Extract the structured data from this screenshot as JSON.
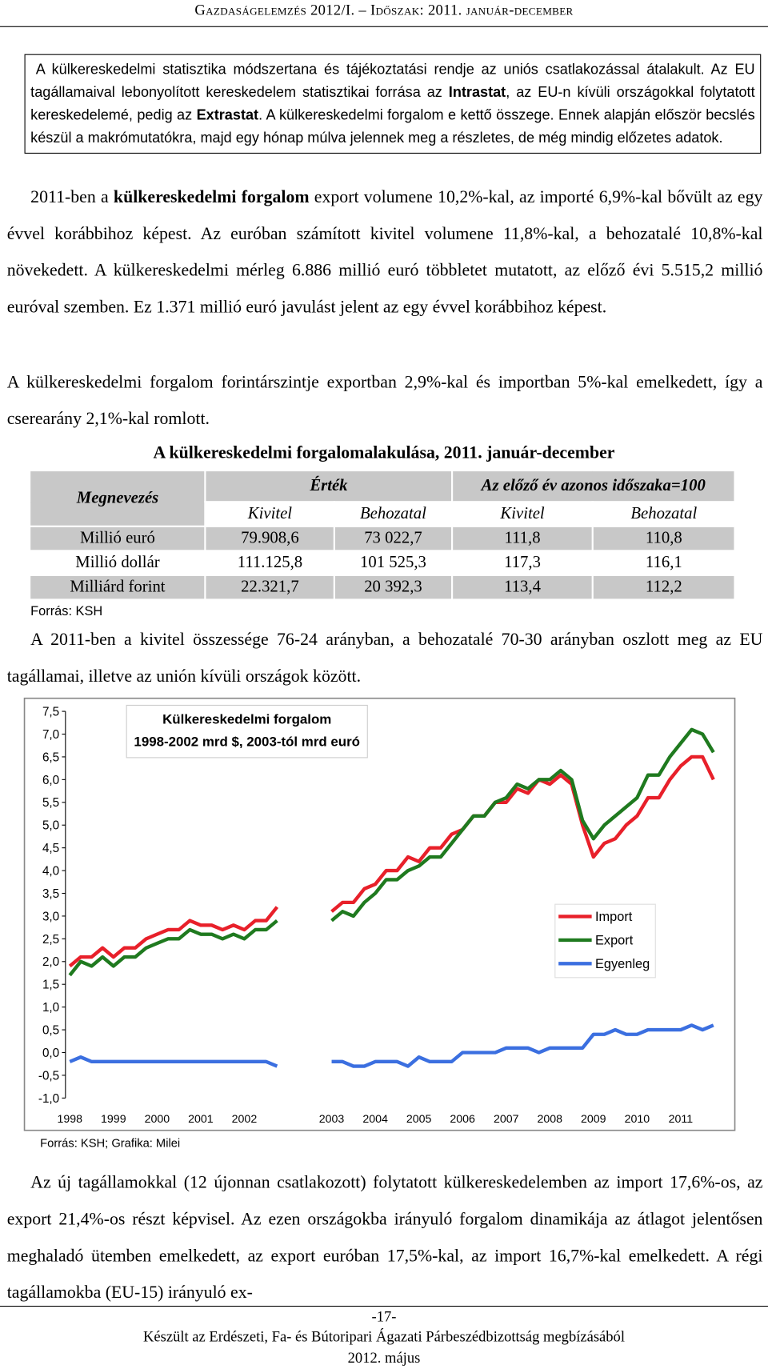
{
  "header": {
    "title": "Gazdaságelemzés 2012/I. – Időszak: 2011. január-december"
  },
  "box": {
    "parts": [
      "A külkereskedelmi statisztika módszertana és tájékoztatási rendje az uniós csatlakozással átalakult. Az EU tagállamaival lebonyolított kereskedelem statisztikai forrása az ",
      "Intrastat",
      ", az EU-n kívüli országokkal folytatott kereskedelemé, pedig az ",
      "Extrastat",
      ". A külkereskedelmi forgalom e kettő összege. Ennek alapján először becslés készül a makrómutatókra, majd egy hónap múlva jelennek meg a részletes, de még mindig előzetes adatok."
    ]
  },
  "paragraphs": [
    {
      "parts": [
        "2011-ben a ",
        "külkereskedelmi forgalom",
        " export volumene 10,2%-kal, az importé 6,9%-kal bővült az egy évvel korábbihoz képest. Az euróban számított kivitel volumene 11,8%-kal, a behozatalé 10,8%-kal növekedett. A külkereskedelmi mérleg 6.886 millió euró többletet mutatott, az előző évi 5.515,2 millió euróval szemben. Ez 1.371 millió euró javulást jelent az egy évvel korábbihoz képest."
      ]
    },
    {
      "parts": [
        "A külkereskedelmi forgalom forintárszintje exportban 2,9%-kal és importban 5%-kal emelkedett, így a cserearány 2,1%-kal romlott."
      ]
    },
    {
      "parts": [
        "A 2011-ben a kivitel összessége 76-24 arányban, a behozatalé 70-30 arányban oszlott meg az EU tagállamai, illetve az unión kívüli országok között."
      ]
    },
    {
      "parts": [
        "Az új tagállamokkal (12 újonnan csatlakozott) folytatott külkereskedelemben az import 17,6%-os, az export 21,4%-os részt képvisel. Az ezen országokba irányuló forgalom dinamikája az átlagot jelentősen meghaladó ütemben emelkedett, az export euróban 17,5%-kal, az import 16,7%-kal emelkedett. A régi tagállamokba (EU-15) irányuló ex-"
      ]
    }
  ],
  "table": {
    "title": "A külkereskedelmi forgalomalakulása, 2011. január-december",
    "header": [
      "Megnevezés",
      "Érték",
      "Az előző év azonos időszaka=100"
    ],
    "subheader": [
      "Kivitel",
      "Behozatal",
      "Kivitel",
      "Behozatal"
    ],
    "rows": [
      [
        "Millió euró",
        "79.908,6",
        "73 022,7",
        "111,8",
        "110,8"
      ],
      [
        "Millió dollár",
        "111.125,8",
        "101 525,3",
        "117,3",
        "116,1"
      ],
      [
        "Milliárd forint",
        "22.321,7",
        "20 392,3",
        "113,4",
        "112,2"
      ]
    ],
    "source": "Forrás: KSH"
  },
  "chart_data": {
    "type": "line",
    "title": [
      "Külkereskedelmi forgalom",
      "1998-2002 mrd $, 2003-tól mrd euró"
    ],
    "source": "Forrás: KSH; Grafika: Milei",
    "legend": "right",
    "categories": [
      "1998",
      null,
      null,
      null,
      "1999",
      null,
      null,
      null,
      "2000",
      null,
      null,
      null,
      "2001",
      null,
      null,
      null,
      "2002",
      null,
      null,
      null,
      null,
      null,
      null,
      null,
      "2003",
      null,
      null,
      null,
      "2004",
      null,
      null,
      null,
      "2005",
      null,
      null,
      null,
      "2006",
      null,
      null,
      null,
      "2007",
      null,
      null,
      null,
      "2008",
      null,
      null,
      null,
      "2009",
      null,
      null,
      null,
      "2010",
      null,
      null,
      null,
      "2011",
      null,
      null,
      null
    ],
    "ylim": [
      -1.0,
      7.5
    ],
    "yticks": [
      {
        "value": -1.0,
        "label": "-1,0"
      },
      {
        "value": -0.5,
        "label": "-0,5"
      },
      {
        "value": 0.0,
        "label": "0,0"
      },
      {
        "value": 0.5,
        "label": "0,5"
      },
      {
        "value": 1.0,
        "label": "1,0"
      },
      {
        "value": 1.5,
        "label": "1,5"
      },
      {
        "value": 2.0,
        "label": "2,0"
      },
      {
        "value": 2.5,
        "label": "2,5"
      },
      {
        "value": 3.0,
        "label": "3,0"
      },
      {
        "value": 3.5,
        "label": "3,5"
      },
      {
        "value": 4.0,
        "label": "4,0"
      },
      {
        "value": 4.5,
        "label": "4,5"
      },
      {
        "value": 5.0,
        "label": "5,0"
      },
      {
        "value": 5.5,
        "label": "5,5"
      },
      {
        "value": 6.0,
        "label": "6,0"
      },
      {
        "value": 6.5,
        "label": "6,5"
      },
      {
        "value": 7.0,
        "label": "7,0"
      },
      {
        "value": 7.5,
        "label": "7,5"
      }
    ],
    "series": [
      {
        "name": "Import",
        "color": "#e8202a",
        "values": [
          1.9,
          2.1,
          2.1,
          2.3,
          2.1,
          2.3,
          2.3,
          2.5,
          2.6,
          2.7,
          2.7,
          2.9,
          2.8,
          2.8,
          2.7,
          2.8,
          2.7,
          2.9,
          2.9,
          3.2,
          null,
          null,
          null,
          null,
          3.1,
          3.3,
          3.3,
          3.6,
          3.7,
          4.0,
          4.0,
          4.3,
          4.2,
          4.5,
          4.5,
          4.8,
          4.9,
          5.2,
          5.2,
          5.5,
          5.5,
          5.8,
          5.7,
          6.0,
          5.9,
          6.1,
          5.9,
          5.0,
          4.3,
          4.6,
          4.7,
          5.0,
          5.2,
          5.6,
          5.6,
          6.0,
          6.3,
          6.5,
          6.5,
          6.0
        ]
      },
      {
        "name": "Export",
        "color": "#1f7a1f",
        "values": [
          1.7,
          2.0,
          1.9,
          2.1,
          1.9,
          2.1,
          2.1,
          2.3,
          2.4,
          2.5,
          2.5,
          2.7,
          2.6,
          2.6,
          2.5,
          2.6,
          2.5,
          2.7,
          2.7,
          2.9,
          null,
          null,
          null,
          null,
          2.9,
          3.1,
          3.0,
          3.3,
          3.5,
          3.8,
          3.8,
          4.0,
          4.1,
          4.3,
          4.3,
          4.6,
          4.9,
          5.2,
          5.2,
          5.5,
          5.6,
          5.9,
          5.8,
          6.0,
          6.0,
          6.2,
          6.0,
          5.1,
          4.7,
          5.0,
          5.2,
          5.4,
          5.6,
          6.1,
          6.1,
          6.5,
          6.8,
          7.1,
          7.0,
          6.6
        ]
      },
      {
        "name": "Egyenleg",
        "color": "#3b6fe0",
        "values": [
          -0.2,
          -0.1,
          -0.2,
          -0.2,
          -0.2,
          -0.2,
          -0.2,
          -0.2,
          -0.2,
          -0.2,
          -0.2,
          -0.2,
          -0.2,
          -0.2,
          -0.2,
          -0.2,
          -0.2,
          -0.2,
          -0.2,
          -0.3,
          null,
          null,
          null,
          null,
          -0.2,
          -0.2,
          -0.3,
          -0.3,
          -0.2,
          -0.2,
          -0.2,
          -0.3,
          -0.1,
          -0.2,
          -0.2,
          -0.2,
          0.0,
          0.0,
          0.0,
          0.0,
          0.1,
          0.1,
          0.1,
          0.0,
          0.1,
          0.1,
          0.1,
          0.1,
          0.4,
          0.4,
          0.5,
          0.4,
          0.4,
          0.5,
          0.5,
          0.5,
          0.5,
          0.6,
          0.5,
          0.6
        ]
      }
    ]
  },
  "footer": {
    "page": "-17-",
    "line1": "Készült az Erdészeti, Fa- és Bútoripari Ágazati Párbeszédbizottság megbízásából",
    "line2": "2012. május"
  }
}
